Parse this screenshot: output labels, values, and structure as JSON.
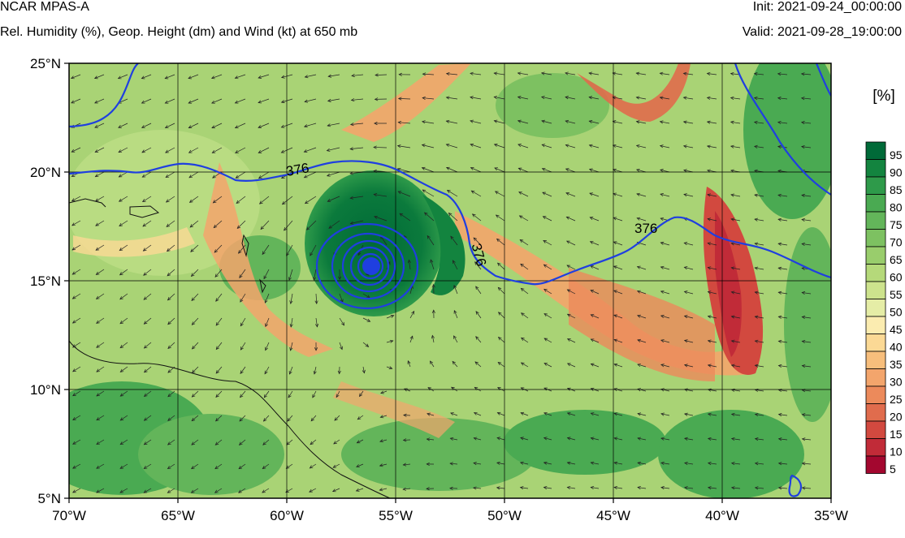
{
  "header": {
    "model": "NCAR MPAS-A",
    "fields": "Rel. Humidity (%), Geop. Height (dm) and Wind (kt) at 650 mb",
    "init": "Init: 2021-09-24_00:00:00",
    "valid": "Valid: 2021-09-28_19:00:00"
  },
  "map": {
    "lon_range": [
      -70,
      -35
    ],
    "lat_range": [
      5,
      25
    ],
    "lon_ticks": [
      {
        "value": -70,
        "label": "70°W"
      },
      {
        "value": -65,
        "label": "65°W"
      },
      {
        "value": -60,
        "label": "60°W"
      },
      {
        "value": -55,
        "label": "55°W"
      },
      {
        "value": -50,
        "label": "50°W"
      },
      {
        "value": -45,
        "label": "45°W"
      },
      {
        "value": -40,
        "label": "40°W"
      },
      {
        "value": -35,
        "label": "35°W"
      }
    ],
    "lat_ticks": [
      {
        "value": 25,
        "label": "25°N"
      },
      {
        "value": 20,
        "label": "20°N"
      },
      {
        "value": 15,
        "label": "15°N"
      },
      {
        "value": 10,
        "label": "10°N"
      },
      {
        "value": 5,
        "label": "5°N"
      }
    ],
    "gridlines": true,
    "cyclone_center": {
      "lon": -56.2,
      "lat": 16.7
    },
    "height_contour": {
      "value_label": "376",
      "labels": [
        {
          "text": "376",
          "lon": -59.5,
          "lat": 19.9,
          "rotate": -10
        },
        {
          "text": "376",
          "lon": -51.2,
          "lat": 16.0,
          "rotate": 75
        },
        {
          "text": "376",
          "lon": -43.5,
          "lat": 17.2,
          "rotate": 0
        }
      ],
      "color": "#1f3fe0"
    }
  },
  "colorbar": {
    "unit": "[%]",
    "levels": [
      "95",
      "90",
      "85",
      "80",
      "75",
      "70",
      "65",
      "60",
      "55",
      "50",
      "45",
      "40",
      "35",
      "30",
      "25",
      "20",
      "15",
      "10",
      "5"
    ],
    "colors": [
      "#006a38",
      "#13843f",
      "#2e9a4a",
      "#4aaa52",
      "#63b55a",
      "#7dc161",
      "#99cd6c",
      "#b5d97a",
      "#cde38d",
      "#e5eda6",
      "#fbecb0",
      "#fbd995",
      "#f7be7c",
      "#f3a56c",
      "#ec8a5b",
      "#e06c4d",
      "#d2493f",
      "#c12b38",
      "#a3072f"
    ]
  }
}
